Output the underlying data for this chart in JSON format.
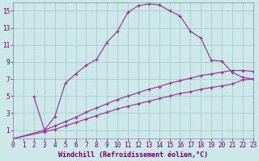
{
  "xlabel": "Windchill (Refroidissement éolien,°C)",
  "background_color": "#cce8e8",
  "grid_color": "#aacccc",
  "line_color": "#993399",
  "xlim": [
    0,
    23
  ],
  "ylim": [
    0,
    16
  ],
  "xticks": [
    0,
    1,
    2,
    3,
    4,
    5,
    6,
    7,
    8,
    9,
    10,
    11,
    12,
    13,
    14,
    15,
    16,
    17,
    18,
    19,
    20,
    21,
    22,
    23
  ],
  "yticks": [
    1,
    3,
    5,
    7,
    9,
    11,
    13,
    15
  ],
  "series1_x": [
    2,
    3,
    4,
    5,
    6,
    7,
    8,
    9,
    10,
    11,
    12,
    13,
    14,
    15,
    16,
    17,
    18,
    19,
    20,
    21,
    22,
    23
  ],
  "series1_y": [
    4.9,
    1.0,
    2.6,
    6.5,
    7.6,
    8.6,
    9.3,
    11.3,
    12.6,
    14.8,
    15.6,
    15.8,
    15.7,
    15.0,
    14.4,
    12.6,
    11.8,
    9.2,
    9.1,
    7.8,
    7.2,
    7.0
  ],
  "series2_x": [
    0,
    3,
    4,
    5,
    6,
    7,
    8,
    9,
    10,
    11,
    12,
    13,
    14,
    15,
    16,
    17,
    18,
    19,
    20,
    21,
    22,
    23
  ],
  "series2_y": [
    0.0,
    1.0,
    1.5,
    2.0,
    2.5,
    3.1,
    3.6,
    4.1,
    4.6,
    5.0,
    5.4,
    5.8,
    6.1,
    6.5,
    6.8,
    7.1,
    7.4,
    7.6,
    7.8,
    8.0,
    8.0,
    7.9
  ],
  "series3_x": [
    0,
    3,
    4,
    5,
    6,
    7,
    8,
    9,
    10,
    11,
    12,
    13,
    14,
    15,
    16,
    17,
    18,
    19,
    20,
    21,
    22,
    23
  ],
  "series3_y": [
    0.0,
    0.8,
    1.1,
    1.5,
    1.9,
    2.3,
    2.7,
    3.1,
    3.5,
    3.8,
    4.1,
    4.4,
    4.7,
    5.0,
    5.3,
    5.5,
    5.8,
    6.0,
    6.2,
    6.4,
    6.9,
    7.0
  ],
  "tick_fontsize": 5.5,
  "label_fontsize": 6.0,
  "linewidth": 0.85,
  "markersize": 3.0
}
